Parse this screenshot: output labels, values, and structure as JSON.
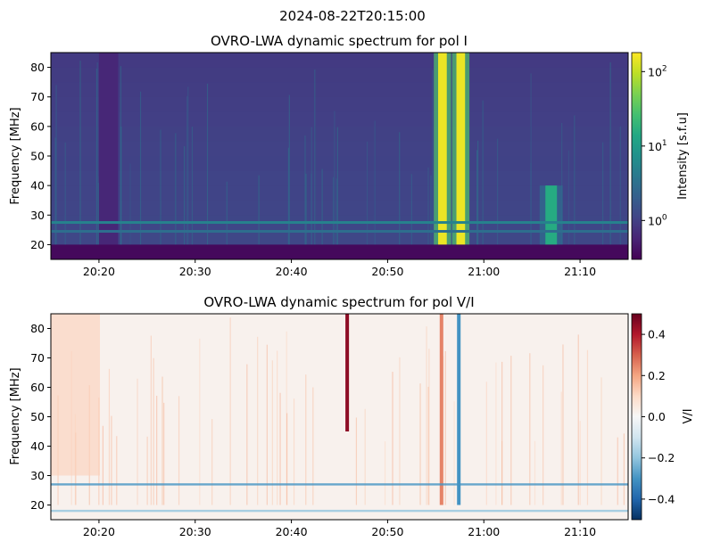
{
  "figure": {
    "suptitle": "2024-08-22T20:15:00"
  },
  "chart_data": [
    {
      "type": "heatmap",
      "title": "OVRO-LWA dynamic spectrum for pol I",
      "xlabel": "",
      "ylabel": "Frequency [MHz]",
      "x_range": [
        "20:15",
        "21:15"
      ],
      "ylim": [
        15,
        85
      ],
      "x_ticks": [
        "20:20",
        "20:30",
        "20:40",
        "20:50",
        "21:00",
        "21:10"
      ],
      "y_ticks": [
        20,
        30,
        40,
        50,
        60,
        70,
        80
      ],
      "colormap": "viridis",
      "colorbar": {
        "label": "Intensity [s.f.u]",
        "scale": "log",
        "range": [
          0.3,
          180
        ],
        "ticks": [
          {
            "base": "10",
            "exp": "0",
            "value": 1
          },
          {
            "base": "10",
            "exp": "1",
            "value": 10
          },
          {
            "base": "10",
            "exp": "2",
            "value": 100
          }
        ]
      },
      "features": [
        {
          "kind": "data_gap",
          "x_start": "20:20",
          "x_end": "20:22",
          "level": 0.6
        },
        {
          "kind": "burst",
          "x": "20:55.7",
          "width_min": 0.9,
          "y_range": [
            20,
            85
          ],
          "level": 150
        },
        {
          "kind": "burst",
          "x": "20:57.6",
          "width_min": 0.9,
          "y_range": [
            20,
            85
          ],
          "level": 150
        },
        {
          "kind": "burst",
          "x": "21:07",
          "width_min": 1.2,
          "y_range": [
            20,
            40
          ],
          "level": 15
        },
        {
          "kind": "rfi_band",
          "y": 27.5,
          "level": 5
        },
        {
          "kind": "rfi_band",
          "y": 24.5,
          "level": 3
        },
        {
          "kind": "low_band",
          "y_range": [
            15,
            20
          ],
          "level": 0.35
        }
      ]
    },
    {
      "type": "heatmap",
      "title": "OVRO-LWA dynamic spectrum for pol V/I",
      "xlabel": "",
      "ylabel": "Frequency [MHz]",
      "x_range": [
        "20:15",
        "21:15"
      ],
      "ylim": [
        15,
        85
      ],
      "x_ticks": [
        "20:20",
        "20:30",
        "20:40",
        "20:50",
        "21:00",
        "21:10"
      ],
      "y_ticks": [
        20,
        30,
        40,
        50,
        60,
        70,
        80
      ],
      "colormap": "RdBu_r",
      "colorbar": {
        "label": "V/I",
        "scale": "linear",
        "range": [
          -0.5,
          0.5
        ],
        "ticks": [
          "0.4",
          "0.2",
          "0.0",
          "−0.2",
          "−0.4"
        ]
      },
      "features": [
        {
          "kind": "polarized_burst",
          "x": "20:45.8",
          "y_range": [
            45,
            85
          ],
          "level": 0.45
        },
        {
          "kind": "polarized_burst",
          "x": "20:55.6",
          "y_range": [
            20,
            85
          ],
          "level": 0.25
        },
        {
          "kind": "polarized_burst",
          "x": "20:57.4",
          "y_range": [
            20,
            85
          ],
          "level": -0.3
        },
        {
          "kind": "rfi_band",
          "y": 27,
          "level": -0.3
        },
        {
          "kind": "rfi_band",
          "y": 18,
          "level": -0.2
        }
      ]
    }
  ]
}
